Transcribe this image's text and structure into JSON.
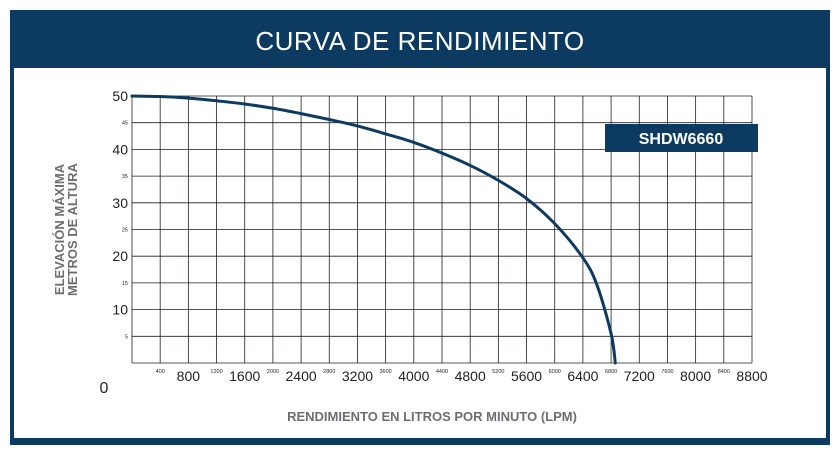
{
  "title": "CURVA DE RENDIMIENTO",
  "chart_data": {
    "type": "line",
    "title": "CURVA DE RENDIMIENTO",
    "xlabel": "RENDIMIENTO EN LITROS POR MINUTO (LPM)",
    "ylabel_lines": [
      "ELEVACIÓN MÁXIMA",
      "METROS DE ALTURA"
    ],
    "xlim": [
      0,
      8800
    ],
    "ylim": [
      0,
      50
    ],
    "x_origin_label": "0",
    "x_ticks_major": [
      800,
      1600,
      2400,
      3200,
      4000,
      4800,
      5600,
      6400,
      7200,
      8000,
      8800
    ],
    "x_ticks_minor": [
      400,
      1200,
      2000,
      2800,
      3600,
      4400,
      5200,
      6000,
      6800,
      7600,
      8400
    ],
    "y_ticks_major": [
      10,
      20,
      30,
      40,
      50
    ],
    "y_ticks_minor": [
      5,
      15,
      25,
      35,
      45
    ],
    "grid": true,
    "legend_position": "top-right",
    "series": [
      {
        "name": "SHDW6660",
        "color": "#0d3a60",
        "x": [
          0,
          400,
          800,
          1200,
          1600,
          2000,
          2400,
          2800,
          3200,
          3600,
          4000,
          4400,
          4800,
          5200,
          5600,
          6000,
          6400,
          6600,
          6800,
          6860
        ],
        "y": [
          50,
          49.9,
          49.6,
          49.1,
          48.5,
          47.7,
          46.7,
          45.6,
          44.4,
          42.9,
          41.3,
          39.3,
          37.0,
          34.2,
          30.8,
          26.1,
          19.7,
          14.6,
          5.5,
          0
        ]
      }
    ]
  }
}
